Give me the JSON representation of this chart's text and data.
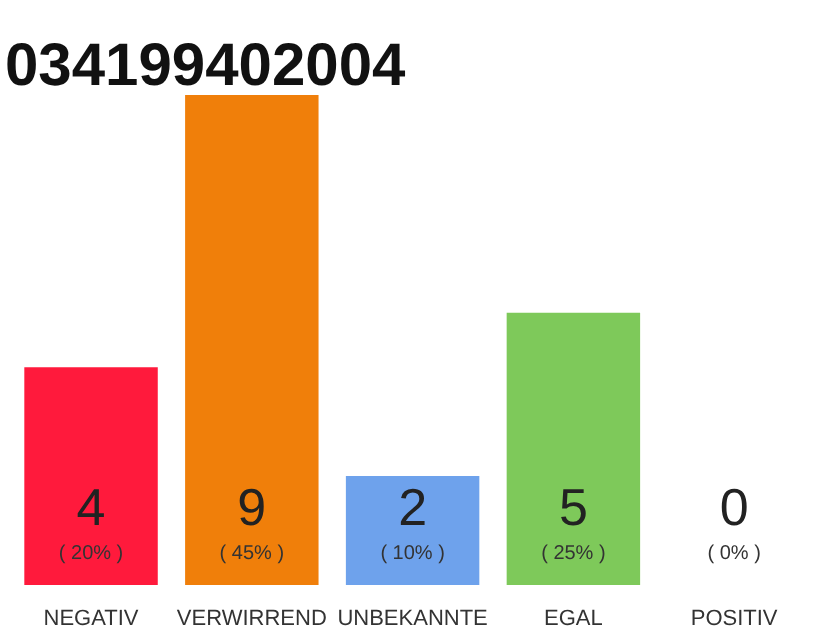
{
  "chart_data": {
    "type": "bar",
    "title": "034199402004",
    "categories": [
      "NEGATIV",
      "VERWIRREND",
      "UNBEKANNTE",
      "EGAL",
      "POSITIV"
    ],
    "values": [
      4,
      9,
      2,
      5,
      0
    ],
    "colors": [
      "#ff1a3c",
      "#f07f0a",
      "#6ea2ec",
      "#7ec95a",
      "#cccccc"
    ],
    "data_labels": true,
    "annotations": [
      "( 20% )",
      "( 45% )",
      "( 10% )",
      "( 25% )",
      "( 0% )"
    ],
    "grid": false
  }
}
